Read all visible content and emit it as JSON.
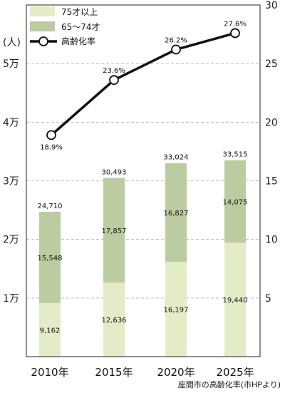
{
  "chart_data": {
    "type": "bar",
    "stacked": true,
    "categories": [
      "2010年",
      "2015年",
      "2020年",
      "2025年"
    ],
    "series": [
      {
        "name": "75才以上",
        "values": [
          9162,
          12636,
          16197,
          19440
        ],
        "color": "#e3ecc6"
      },
      {
        "name": "65〜74才",
        "values": [
          15548,
          17857,
          16827,
          14075
        ],
        "color": "#bccba0"
      }
    ],
    "totals": [
      "24,710",
      "30,493",
      "33,024",
      "33,515"
    ],
    "segment_labels": {
      "75才以上": [
        "9,162",
        "12,636",
        "16,197",
        "19,440"
      ],
      "65〜74才": [
        "15,548",
        "17,857",
        "16,827",
        "14,075"
      ]
    },
    "line_series": {
      "name": "高齢化率",
      "values": [
        18.9,
        23.6,
        26.2,
        27.6
      ],
      "labels": [
        "18.9%",
        "23.6%",
        "26.2%",
        "27.6%"
      ],
      "axis": "right",
      "color": "#111111"
    },
    "left_axis": {
      "unit_label": "(人)",
      "ylim": [
        0,
        60000
      ],
      "ticks": [
        {
          "value": 10000,
          "label": "1万"
        },
        {
          "value": 20000,
          "label": "2万"
        },
        {
          "value": 30000,
          "label": "3万"
        },
        {
          "value": 40000,
          "label": "4万"
        },
        {
          "value": 50000,
          "label": "5万"
        }
      ]
    },
    "right_axis": {
      "ylim": [
        0,
        30
      ],
      "ticks": [
        {
          "value": 5,
          "label": "5"
        },
        {
          "value": 10,
          "label": "10"
        },
        {
          "value": 15,
          "label": "15"
        },
        {
          "value": 20,
          "label": "20"
        },
        {
          "value": 25,
          "label": "25"
        },
        {
          "value": 30,
          "label": "30"
        }
      ]
    },
    "grid": true,
    "legend_position": "top-left",
    "source": "座間市の高齢化率(市HPより)"
  }
}
